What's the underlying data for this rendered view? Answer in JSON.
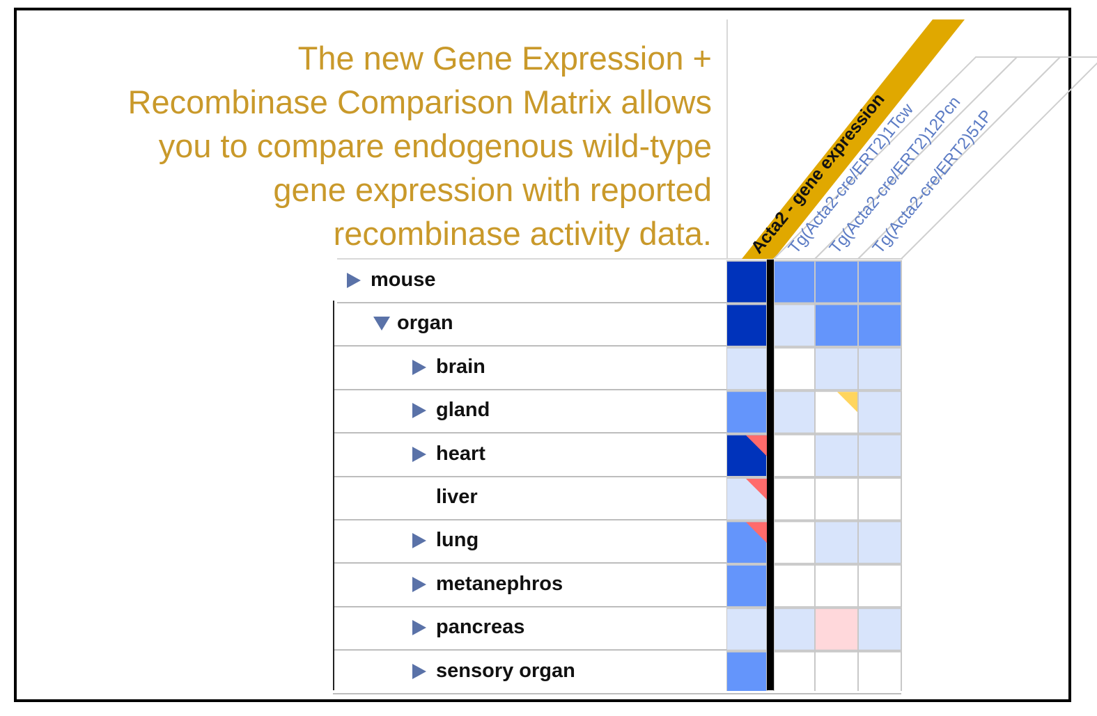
{
  "headline": {
    "line1": "The new Gene Expression +",
    "line2": "Recombinase Comparison Matrix allows",
    "line3": "you to compare endogenous wild-type",
    "line4": "gene expression with reported",
    "line5": "recombinase activity data."
  },
  "colors": {
    "accent_gold": "#C9992A",
    "col_header_highlight": "#E0A800",
    "dark_blue": "#0033BB",
    "mid_blue": "#6495FB",
    "light_blue": "#D8E4FB",
    "pink": "#FFD8DB",
    "red_flag": "#FF6B6B",
    "yellow_flag": "#FFD55E",
    "expander": "#5A72A8"
  },
  "columns": [
    {
      "label": "Acta2 - gene expression",
      "highlighted": true
    },
    {
      "label": "Tg(Acta2-cre/ERT2)1Tcw",
      "highlighted": false
    },
    {
      "label": "Tg(Acta2-cre/ERT2)12Pcn",
      "highlighted": false
    },
    {
      "label": "Tg(Acta2-cre/ERT2)51P",
      "highlighted": false
    }
  ],
  "rows": [
    {
      "label": "mouse",
      "level": 0,
      "expander": "collapsed",
      "cells": [
        "dark",
        "mid",
        "mid",
        "mid"
      ],
      "flags": [
        null,
        null,
        null,
        null
      ]
    },
    {
      "label": "organ",
      "level": 1,
      "expander": "expanded",
      "cells": [
        "dark",
        "light",
        "mid",
        "mid"
      ],
      "flags": [
        null,
        null,
        null,
        null
      ]
    },
    {
      "label": "brain",
      "level": 2,
      "expander": "collapsed",
      "cells": [
        "light",
        "white",
        "light",
        "light"
      ],
      "flags": [
        null,
        null,
        null,
        null
      ]
    },
    {
      "label": "gland",
      "level": 2,
      "expander": "collapsed",
      "cells": [
        "mid",
        "light",
        "white",
        "light"
      ],
      "flags": [
        null,
        null,
        "yellow",
        null
      ]
    },
    {
      "label": "heart",
      "level": 2,
      "expander": "collapsed",
      "cells": [
        "dark",
        "white",
        "light",
        "light"
      ],
      "flags": [
        "red",
        null,
        null,
        null
      ]
    },
    {
      "label": "liver",
      "level": 2,
      "expander": "none",
      "cells": [
        "light",
        "white",
        "white",
        "white"
      ],
      "flags": [
        "red",
        null,
        null,
        null
      ]
    },
    {
      "label": "lung",
      "level": 2,
      "expander": "collapsed",
      "cells": [
        "mid",
        "white",
        "light",
        "light"
      ],
      "flags": [
        "red",
        null,
        null,
        null
      ]
    },
    {
      "label": "metanephros",
      "level": 2,
      "expander": "collapsed",
      "cells": [
        "mid",
        "white",
        "white",
        "white"
      ],
      "flags": [
        null,
        null,
        null,
        null
      ]
    },
    {
      "label": "pancreas",
      "level": 2,
      "expander": "collapsed",
      "cells": [
        "light",
        "light",
        "pink",
        "light"
      ],
      "flags": [
        null,
        null,
        null,
        null
      ]
    },
    {
      "label": "sensory organ",
      "level": 2,
      "expander": "collapsed",
      "cells": [
        "mid",
        "white",
        "white",
        "white"
      ],
      "flags": [
        null,
        null,
        null,
        null
      ]
    }
  ]
}
